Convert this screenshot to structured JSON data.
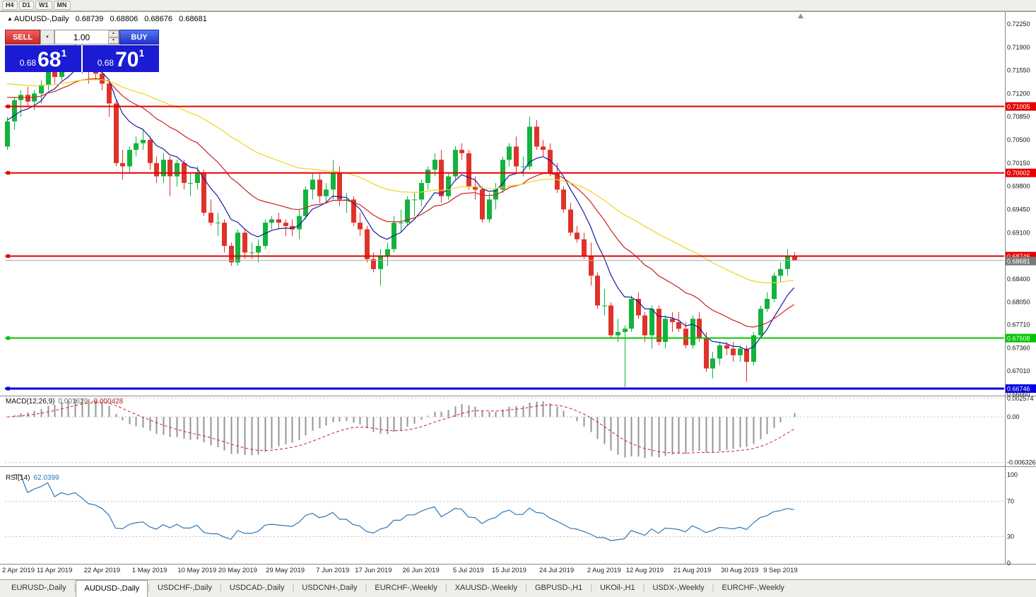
{
  "toolbar": {
    "timeframes": [
      "H4",
      "D1",
      "W1",
      "MN"
    ]
  },
  "title": {
    "marker": "▲",
    "symbol": "AUDUSD-,Daily",
    "open": "0.68739",
    "high": "0.68806",
    "low": "0.68676",
    "close": "0.68681"
  },
  "trade_panel": {
    "sell_label": "SELL",
    "buy_label": "BUY",
    "lot_size": "1.00",
    "sell_price": {
      "prefix": "0.68",
      "big": "68",
      "sup": "1"
    },
    "buy_price": {
      "prefix": "0.68",
      "big": "70",
      "sup": "1"
    }
  },
  "tabs": {
    "active": 1,
    "items": [
      "EURUSD-,Daily",
      "AUDUSD-,Daily",
      "USDCHF-,Daily",
      "USDCAD-,Daily",
      "USDCNH-,Daily",
      "EURCHF-,Weekly",
      "XAUUSD-,Weekly",
      "GBPUSD-,H1",
      "UKOil-,H1",
      "USDX-,Weekly",
      "EURCHF-,Weekly"
    ]
  },
  "chart_data": {
    "type": "candlestick",
    "symbol": "AUDUSD-,Daily",
    "price_axis_ticks": [
      "0.72250",
      "0.71900",
      "0.71550",
      "0.71200",
      "0.70850",
      "0.70500",
      "0.70150",
      "0.69800",
      "0.69450",
      "0.69100",
      "0.68400",
      "0.68050",
      "0.67710",
      "0.67360",
      "0.67010",
      "0.66660"
    ],
    "price_range": [
      0.6665,
      0.7242
    ],
    "levels": [
      {
        "price": 0.71005,
        "label": "0.71005",
        "color": "#e60000",
        "width": 2
      },
      {
        "price": 0.70002,
        "label": "0.70002",
        "color": "#e60000",
        "width": 2
      },
      {
        "price": 0.68746,
        "label": "0.68746",
        "color": "#e60000",
        "width": 2
      },
      {
        "price": 0.67508,
        "label": "0.67508",
        "color": "#00c400",
        "width": 2
      },
      {
        "price": 0.66746,
        "label": "0.66746",
        "color": "#0000e0",
        "width": 3
      }
    ],
    "current_price": {
      "value": 0.68681,
      "label": "0.68681",
      "color": "#7a7a7a"
    },
    "colors": {
      "up": "#12b33e",
      "down": "#e03228",
      "ma_fast": "#161a9e",
      "ma_mid": "#cc2020",
      "ma_slow": "#ecd51c",
      "macd_bar": "#949494",
      "macd_signal": "#d02020",
      "rsi_line": "#2e76b5"
    },
    "moving_averages": [
      {
        "period": 8,
        "color_key": "ma_fast",
        "seed": 0.708
      },
      {
        "period": 21,
        "color_key": "ma_mid",
        "seed": 0.7118
      },
      {
        "period": 50,
        "color_key": "ma_slow",
        "seed": 0.7137
      }
    ],
    "candles_ohlc": [
      [
        0.704,
        0.7085,
        0.7035,
        0.7078
      ],
      [
        0.7078,
        0.7115,
        0.7065,
        0.711
      ],
      [
        0.711,
        0.7125,
        0.7085,
        0.7118
      ],
      [
        0.7118,
        0.713,
        0.71,
        0.7108
      ],
      [
        0.7108,
        0.7125,
        0.7095,
        0.712
      ],
      [
        0.712,
        0.714,
        0.7105,
        0.7133
      ],
      [
        0.7133,
        0.7175,
        0.7125,
        0.7168
      ],
      [
        0.7168,
        0.718,
        0.7135,
        0.7145
      ],
      [
        0.7145,
        0.718,
        0.714,
        0.7175
      ],
      [
        0.7175,
        0.719,
        0.716,
        0.717
      ],
      [
        0.717,
        0.7205,
        0.7165,
        0.719
      ],
      [
        0.719,
        0.7195,
        0.715,
        0.7175
      ],
      [
        0.7175,
        0.718,
        0.7135,
        0.7155
      ],
      [
        0.7155,
        0.7165,
        0.714,
        0.715
      ],
      [
        0.715,
        0.716,
        0.7125,
        0.7135
      ],
      [
        0.7135,
        0.714,
        0.7085,
        0.7105
      ],
      [
        0.7105,
        0.711,
        0.701,
        0.7015
      ],
      [
        0.7015,
        0.7035,
        0.699,
        0.701
      ],
      [
        0.701,
        0.704,
        0.7,
        0.7035
      ],
      [
        0.7035,
        0.7055,
        0.7025,
        0.7045
      ],
      [
        0.7045,
        0.7065,
        0.7035,
        0.705
      ],
      [
        0.705,
        0.7055,
        0.7005,
        0.7015
      ],
      [
        0.7015,
        0.7025,
        0.6985,
        0.6995
      ],
      [
        0.6995,
        0.703,
        0.6985,
        0.702
      ],
      [
        0.702,
        0.7025,
        0.6965,
        0.6995
      ],
      [
        0.6995,
        0.702,
        0.698,
        0.7015
      ],
      [
        0.7015,
        0.702,
        0.6975,
        0.6985
      ],
      [
        0.6985,
        0.7,
        0.6965,
        0.6985
      ],
      [
        0.6985,
        0.701,
        0.6975,
        0.7
      ],
      [
        0.7,
        0.7005,
        0.6935,
        0.694
      ],
      [
        0.694,
        0.696,
        0.692,
        0.6925
      ],
      [
        0.6925,
        0.694,
        0.6905,
        0.6925
      ],
      [
        0.6925,
        0.693,
        0.688,
        0.689
      ],
      [
        0.689,
        0.6895,
        0.686,
        0.6865
      ],
      [
        0.6865,
        0.6915,
        0.686,
        0.691
      ],
      [
        0.691,
        0.6915,
        0.687,
        0.688
      ],
      [
        0.688,
        0.6895,
        0.687,
        0.688
      ],
      [
        0.688,
        0.69,
        0.6865,
        0.689
      ],
      [
        0.689,
        0.693,
        0.6885,
        0.6925
      ],
      [
        0.6925,
        0.6935,
        0.6915,
        0.693
      ],
      [
        0.693,
        0.694,
        0.6915,
        0.6925
      ],
      [
        0.6925,
        0.693,
        0.6905,
        0.692
      ],
      [
        0.692,
        0.693,
        0.6905,
        0.6915
      ],
      [
        0.6915,
        0.6945,
        0.69,
        0.6935
      ],
      [
        0.6935,
        0.698,
        0.693,
        0.6975
      ],
      [
        0.6975,
        0.7,
        0.696,
        0.699
      ],
      [
        0.699,
        0.7,
        0.6955,
        0.6965
      ],
      [
        0.6965,
        0.6985,
        0.6955,
        0.6975
      ],
      [
        0.6975,
        0.702,
        0.696,
        0.7
      ],
      [
        0.7,
        0.701,
        0.695,
        0.696
      ],
      [
        0.696,
        0.697,
        0.694,
        0.696
      ],
      [
        0.696,
        0.6965,
        0.692,
        0.6925
      ],
      [
        0.6925,
        0.694,
        0.6905,
        0.6915
      ],
      [
        0.6915,
        0.692,
        0.6865,
        0.687
      ],
      [
        0.687,
        0.688,
        0.685,
        0.6855
      ],
      [
        0.6855,
        0.6885,
        0.683,
        0.6875
      ],
      [
        0.6875,
        0.6895,
        0.686,
        0.6885
      ],
      [
        0.6885,
        0.6935,
        0.688,
        0.6925
      ],
      [
        0.6925,
        0.6945,
        0.691,
        0.6925
      ],
      [
        0.6925,
        0.6965,
        0.692,
        0.696
      ],
      [
        0.696,
        0.697,
        0.6935,
        0.696
      ],
      [
        0.696,
        0.699,
        0.695,
        0.6985
      ],
      [
        0.6985,
        0.701,
        0.6975,
        0.7005
      ],
      [
        0.7005,
        0.703,
        0.6995,
        0.702
      ],
      [
        0.702,
        0.7035,
        0.6955,
        0.6965
      ],
      [
        0.6965,
        0.7,
        0.696,
        0.6995
      ],
      [
        0.6995,
        0.704,
        0.699,
        0.7035
      ],
      [
        0.7035,
        0.7045,
        0.702,
        0.703
      ],
      [
        0.703,
        0.7035,
        0.6975,
        0.698
      ],
      [
        0.698,
        0.6995,
        0.696,
        0.6975
      ],
      [
        0.6975,
        0.698,
        0.6925,
        0.693
      ],
      [
        0.693,
        0.697,
        0.6925,
        0.696
      ],
      [
        0.696,
        0.6985,
        0.6945,
        0.6975
      ],
      [
        0.6975,
        0.7025,
        0.697,
        0.702
      ],
      [
        0.702,
        0.7045,
        0.701,
        0.704
      ],
      [
        0.704,
        0.7055,
        0.7,
        0.701
      ],
      [
        0.701,
        0.7025,
        0.6995,
        0.701
      ],
      [
        0.701,
        0.7085,
        0.7005,
        0.707
      ],
      [
        0.707,
        0.708,
        0.7035,
        0.704
      ],
      [
        0.704,
        0.705,
        0.7025,
        0.7035
      ],
      [
        0.7035,
        0.7045,
        0.6995,
        0.7
      ],
      [
        0.7,
        0.7015,
        0.697,
        0.6975
      ],
      [
        0.6975,
        0.698,
        0.694,
        0.6945
      ],
      [
        0.6945,
        0.6955,
        0.6905,
        0.691
      ],
      [
        0.691,
        0.692,
        0.6895,
        0.69
      ],
      [
        0.69,
        0.691,
        0.687,
        0.6875
      ],
      [
        0.6875,
        0.6895,
        0.683,
        0.6845
      ],
      [
        0.6845,
        0.685,
        0.6795,
        0.68
      ],
      [
        0.68,
        0.6825,
        0.6785,
        0.68
      ],
      [
        0.68,
        0.6805,
        0.675,
        0.6755
      ],
      [
        0.6755,
        0.678,
        0.6745,
        0.676
      ],
      [
        0.676,
        0.677,
        0.6677,
        0.6765
      ],
      [
        0.6765,
        0.6815,
        0.676,
        0.681
      ],
      [
        0.681,
        0.682,
        0.678,
        0.6785
      ],
      [
        0.6785,
        0.679,
        0.6745,
        0.6755
      ],
      [
        0.6755,
        0.68,
        0.6735,
        0.6795
      ],
      [
        0.6795,
        0.68,
        0.674,
        0.6745
      ],
      [
        0.6745,
        0.6785,
        0.6735,
        0.678
      ],
      [
        0.678,
        0.679,
        0.676,
        0.6775
      ],
      [
        0.6775,
        0.679,
        0.676,
        0.6765
      ],
      [
        0.6765,
        0.6775,
        0.6735,
        0.674
      ],
      [
        0.674,
        0.6785,
        0.6735,
        0.678
      ],
      [
        0.678,
        0.679,
        0.6745,
        0.675
      ],
      [
        0.675,
        0.676,
        0.67,
        0.6705
      ],
      [
        0.6705,
        0.673,
        0.669,
        0.672
      ],
      [
        0.672,
        0.6745,
        0.671,
        0.674
      ],
      [
        0.674,
        0.6745,
        0.6725,
        0.6735
      ],
      [
        0.6735,
        0.6745,
        0.6715,
        0.6725
      ],
      [
        0.6725,
        0.674,
        0.6715,
        0.6735
      ],
      [
        0.6735,
        0.674,
        0.6685,
        0.6715
      ],
      [
        0.6715,
        0.676,
        0.671,
        0.6755
      ],
      [
        0.6755,
        0.68,
        0.675,
        0.6795
      ],
      [
        0.6795,
        0.682,
        0.679,
        0.681
      ],
      [
        0.681,
        0.685,
        0.6805,
        0.6845
      ],
      [
        0.6845,
        0.6865,
        0.6835,
        0.6855
      ],
      [
        0.6855,
        0.6885,
        0.6845,
        0.6875
      ],
      [
        0.68739,
        0.68806,
        0.68676,
        0.68681
      ]
    ],
    "x_labels": [
      {
        "i": 0,
        "t": "2 Apr 2019"
      },
      {
        "i": 7,
        "t": "11 Apr 2019"
      },
      {
        "i": 14,
        "t": "22 Apr 2019"
      },
      {
        "i": 21,
        "t": "1 May 2019"
      },
      {
        "i": 28,
        "t": "10 May 2019"
      },
      {
        "i": 34,
        "t": "20 May 2019"
      },
      {
        "i": 41,
        "t": "29 May 2019"
      },
      {
        "i": 48,
        "t": "7 Jun 2019"
      },
      {
        "i": 54,
        "t": "17 Jun 2019"
      },
      {
        "i": 61,
        "t": "26 Jun 2019"
      },
      {
        "i": 68,
        "t": "5 Jul 2019"
      },
      {
        "i": 74,
        "t": "15 Jul 2019"
      },
      {
        "i": 81,
        "t": "24 Jul 2019"
      },
      {
        "i": 88,
        "t": "2 Aug 2019"
      },
      {
        "i": 94,
        "t": "12 Aug 2019"
      },
      {
        "i": 101,
        "t": "21 Aug 2019"
      },
      {
        "i": 108,
        "t": "30 Aug 2019"
      },
      {
        "i": 114,
        "t": "9 Sep 2019"
      }
    ],
    "macd": {
      "label": "MACD(12,26,9)",
      "value_main": "0.001629",
      "value_signal": "-0.000428",
      "params": [
        12,
        26,
        9
      ],
      "axis_ticks": [
        "0.002574",
        "0.00",
        "-0.006326"
      ]
    },
    "rsi": {
      "label": "RSI(14)",
      "value": "62.0399",
      "period": 14,
      "axis_ticks": [
        "100",
        "70",
        "30",
        "0"
      ],
      "level_lines": [
        70,
        30
      ]
    }
  }
}
